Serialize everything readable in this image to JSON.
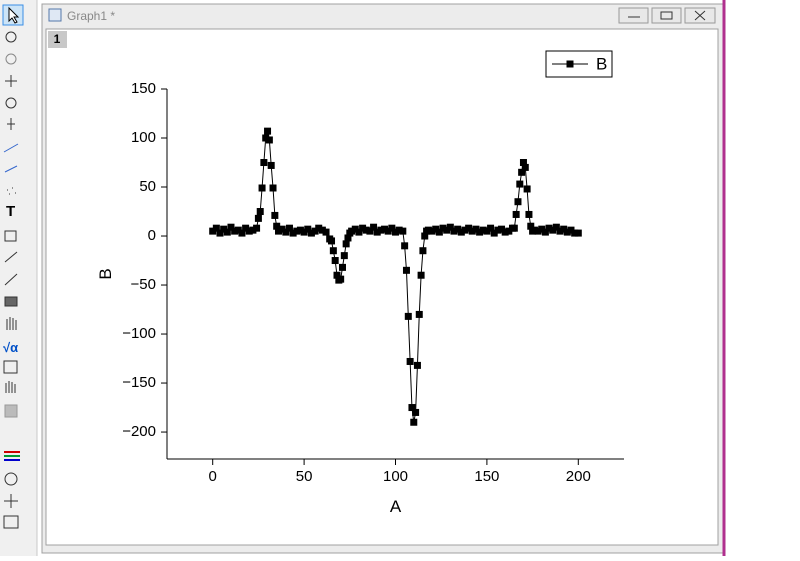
{
  "window": {
    "title": "Graph1 *",
    "layer": "1"
  },
  "chart_data": {
    "type": "line",
    "title_x": "A",
    "title_y": "B",
    "x": [
      0,
      2,
      4,
      6,
      8,
      10,
      12,
      14,
      16,
      18,
      20,
      22,
      24,
      25,
      26,
      27,
      28,
      29,
      30,
      31,
      32,
      33,
      34,
      35,
      36,
      38,
      40,
      42,
      44,
      46,
      48,
      50,
      52,
      54,
      56,
      58,
      60,
      62,
      64,
      65,
      66,
      67,
      68,
      69,
      70,
      71,
      72,
      73,
      74,
      75,
      76,
      78,
      80,
      82,
      84,
      86,
      88,
      90,
      92,
      94,
      96,
      98,
      100,
      102,
      104,
      105,
      106,
      107,
      108,
      109,
      110,
      111,
      112,
      113,
      114,
      115,
      116,
      117,
      118,
      120,
      122,
      124,
      126,
      128,
      130,
      132,
      134,
      136,
      138,
      140,
      142,
      144,
      146,
      148,
      150,
      152,
      154,
      156,
      158,
      160,
      162,
      164,
      165,
      166,
      167,
      168,
      169,
      170,
      171,
      172,
      173,
      174,
      175,
      176,
      178,
      180,
      182,
      184,
      186,
      188,
      190,
      192,
      194,
      196,
      198,
      200
    ],
    "series": [
      {
        "name": "B",
        "color": "#000000",
        "values": [
          5,
          8,
          3,
          7,
          4,
          9,
          5,
          6,
          3,
          8,
          5,
          6,
          8,
          18,
          25,
          49,
          75,
          100,
          107,
          98,
          72,
          49,
          21,
          10,
          5,
          7,
          4,
          8,
          3,
          5,
          6,
          4,
          7,
          3,
          5,
          8,
          6,
          4,
          -3,
          -5,
          -15,
          -25,
          -40,
          -45,
          -44,
          -32,
          -20,
          -8,
          -2,
          3,
          5,
          7,
          4,
          8,
          6,
          5,
          9,
          4,
          6,
          7,
          5,
          8,
          4,
          6,
          5,
          -10,
          -35,
          -82,
          -128,
          -175,
          -190,
          -180,
          -132,
          -80,
          -40,
          -15,
          0,
          5,
          6,
          5,
          7,
          4,
          8,
          6,
          9,
          5,
          7,
          4,
          6,
          8,
          5,
          7,
          4,
          6,
          5,
          8,
          3,
          6,
          7,
          4,
          5,
          8,
          8,
          22,
          35,
          53,
          65,
          75,
          70,
          48,
          22,
          10,
          5,
          6,
          5,
          7,
          4,
          8,
          6,
          9,
          5,
          7,
          4,
          6,
          3,
          3
        ]
      }
    ],
    "xlim": [
      -25,
      225
    ],
    "xticks": [
      0,
      50,
      100,
      150,
      200
    ],
    "ylim": [
      -227.5,
      150
    ],
    "yticks": [
      {
        "value": -200,
        "label": "−200"
      },
      {
        "value": -150,
        "label": "−150"
      },
      {
        "value": -100,
        "label": "−100"
      },
      {
        "value": -50,
        "label": "−50"
      },
      0,
      50,
      100,
      150
    ],
    "legend": "top-right"
  }
}
